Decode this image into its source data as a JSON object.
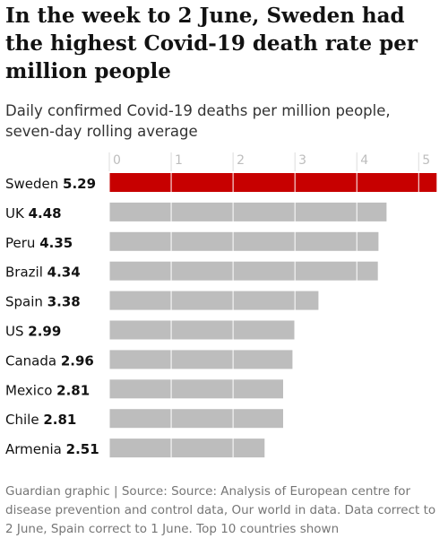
{
  "headline": "In the week to 2 June, Sweden had the highest Covid-19 death rate per million people",
  "subtitle": "Daily confirmed Covid-19 deaths per million people, seven-day rolling average",
  "footer": "Guardian graphic | Source: Source: Analysis of European centre for disease prevention and control data, Our world in data. Data correct to 2 June, Spain correct to 1 June. Top 10 countries shown",
  "colors": {
    "highlight": "#c70000",
    "bar": "#bdbdbd",
    "grid": "#ffffff",
    "tick_text": "#bdbdbd"
  },
  "chart_data": {
    "type": "bar",
    "orientation": "horizontal",
    "categories": [
      "Sweden",
      "UK",
      "Peru",
      "Brazil",
      "Spain",
      "US",
      "Canada",
      "Mexico",
      "Chile",
      "Armenia"
    ],
    "values": [
      5.29,
      4.48,
      4.35,
      4.34,
      3.38,
      2.99,
      2.96,
      2.81,
      2.81,
      2.51
    ],
    "value_labels": [
      "5.29",
      "4.48",
      "4.35",
      "4.34",
      "3.38",
      "2.99",
      "2.96",
      "2.81",
      "2.81",
      "2.51"
    ],
    "highlighted": [
      "Sweden"
    ],
    "xticks": [
      "0",
      "1",
      "2",
      "3",
      "4",
      "5"
    ],
    "xlim": [
      0,
      5.3
    ],
    "grid": true,
    "title": "In the week to 2 June, Sweden had the highest Covid-19 death rate per million people",
    "xlabel": "",
    "ylabel": ""
  }
}
